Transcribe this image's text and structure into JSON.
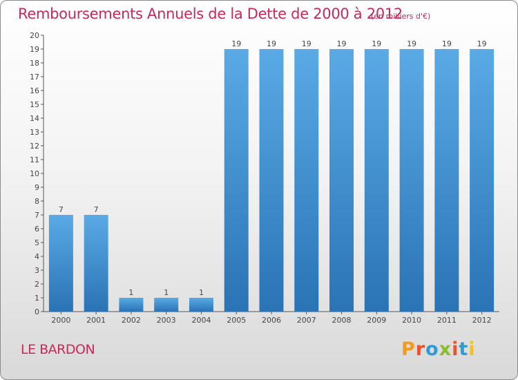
{
  "title": "Remboursements Annuels de la Dette de 2000 à 2012",
  "unit_label": "(en milliers d'€)",
  "commune": "LE BARDON",
  "logo": {
    "text": "Proxiti",
    "letters": [
      "P",
      "r",
      "o",
      "x",
      "i",
      "t",
      "i"
    ],
    "colors": [
      "#f39a1c",
      "#e8522e",
      "#2e9bd6",
      "#8bbd2a",
      "#e8522e",
      "#2e9bd6",
      "#f3c21c"
    ]
  },
  "chart_data": {
    "type": "bar",
    "categories": [
      "2000",
      "2001",
      "2002",
      "2003",
      "2004",
      "2005",
      "2006",
      "2007",
      "2008",
      "2009",
      "2010",
      "2011",
      "2012"
    ],
    "values": [
      7,
      7,
      1,
      1,
      1,
      19,
      19,
      19,
      19,
      19,
      19,
      19,
      19
    ],
    "data_labels": [
      "7",
      "7",
      "1",
      "1",
      "1",
      "19",
      "19",
      "19",
      "19",
      "19",
      "19",
      "19",
      "19"
    ],
    "title": "Remboursements Annuels de la Dette de 2000 à 2012",
    "subtitle": "(en milliers d'€)",
    "xlabel": "",
    "ylabel": "",
    "ylim": [
      0,
      20
    ],
    "y_ticks": [
      0,
      1,
      2,
      3,
      4,
      5,
      6,
      7,
      8,
      9,
      10,
      11,
      12,
      13,
      14,
      15,
      16,
      17,
      18,
      19,
      20
    ],
    "grid": false,
    "legend": "none",
    "bar_color": "#3d8fd4",
    "bar_color_light": "#5aaae6",
    "bar_color_dark": "#2a73b5"
  }
}
